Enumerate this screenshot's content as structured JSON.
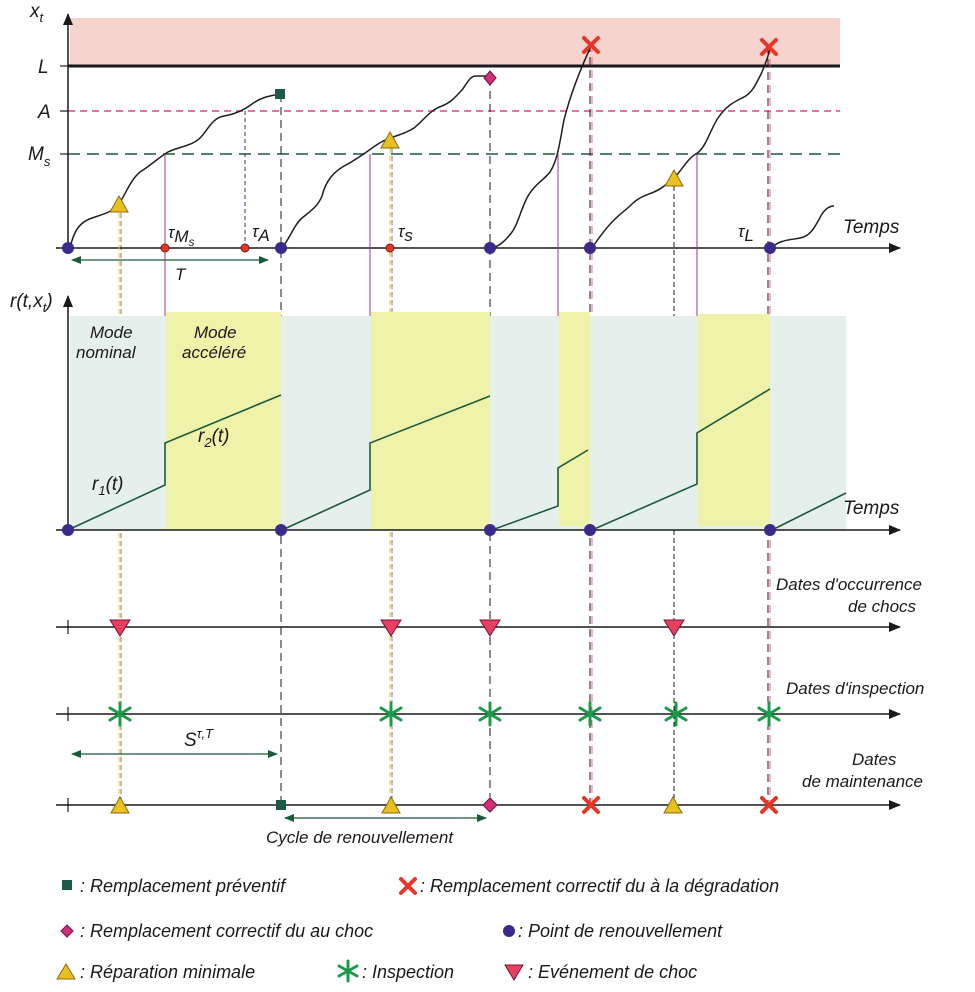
{
  "diagram": {
    "colors": {
      "zone_fail": "#f7d3cd",
      "zone_nominal": "#e5efec",
      "zone_accel": "#eff2a9",
      "curve": "#1f1f1f",
      "rate_line": "#1c5a3c",
      "threshold_A": "#e8407a",
      "threshold_Ms": "#1c5a3c",
      "renewal": "#3b2a8a",
      "preventive": "#1d5a48",
      "shock_diamond": "#d0307a",
      "failure_x": "#e8352a",
      "triangle_up": "#e8c020",
      "triangle_down": "#e84060",
      "inspection": "#1c9a4a",
      "accel_vline": "#9a3a8a",
      "tau_dot": "#e8352a"
    },
    "top": {
      "y_label": "x",
      "y_label_sub": "t",
      "L_label": "L",
      "A_label": "A",
      "Ms_label": "M",
      "Ms_sub": "s",
      "x_label": "Temps",
      "tau_symbol": "τ",
      "tau_Ms_sub": "M",
      "tau_Ms_subsub": "s",
      "tau_A_sub": "A",
      "tau_s_sub": "s",
      "tau_L_sub": "L",
      "T_label": "T"
    },
    "rate": {
      "y_label": "r(t,x",
      "y_label_sub": "t",
      "y_label_end": ")",
      "x_label": "Temps",
      "mode_nominal_line1": "Mode",
      "mode_nominal_line2": "nominal",
      "mode_accel_line1": "Mode",
      "mode_accel_line2": "accéléré",
      "r1_label": "r",
      "r1_sub": "1",
      "r1_end": "(t)",
      "r2_label": "r",
      "r2_sub": "2",
      "r2_end": "(t)"
    },
    "timelines": {
      "shocks_line1": "Dates d'occurrence",
      "shocks_line2": "de chocs",
      "inspection": "Dates d'inspection",
      "maintenance_line1": "Dates",
      "maintenance_line2": "de maintenance",
      "S_label": "S",
      "S_sup": "τ,T",
      "cycle_label": "Cycle de renouvellement"
    },
    "legend": {
      "preventive": ": Remplacement préventif",
      "corrective_degradation": ": Remplacement correctif du à la dégradation",
      "corrective_shock": ": Remplacement correctif du au choc",
      "renewal": ": Point de renouvellement",
      "minimal_repair": ": Réparation minimale",
      "inspection": ": Inspection",
      "shock_event": ": Evénement de choc"
    }
  }
}
